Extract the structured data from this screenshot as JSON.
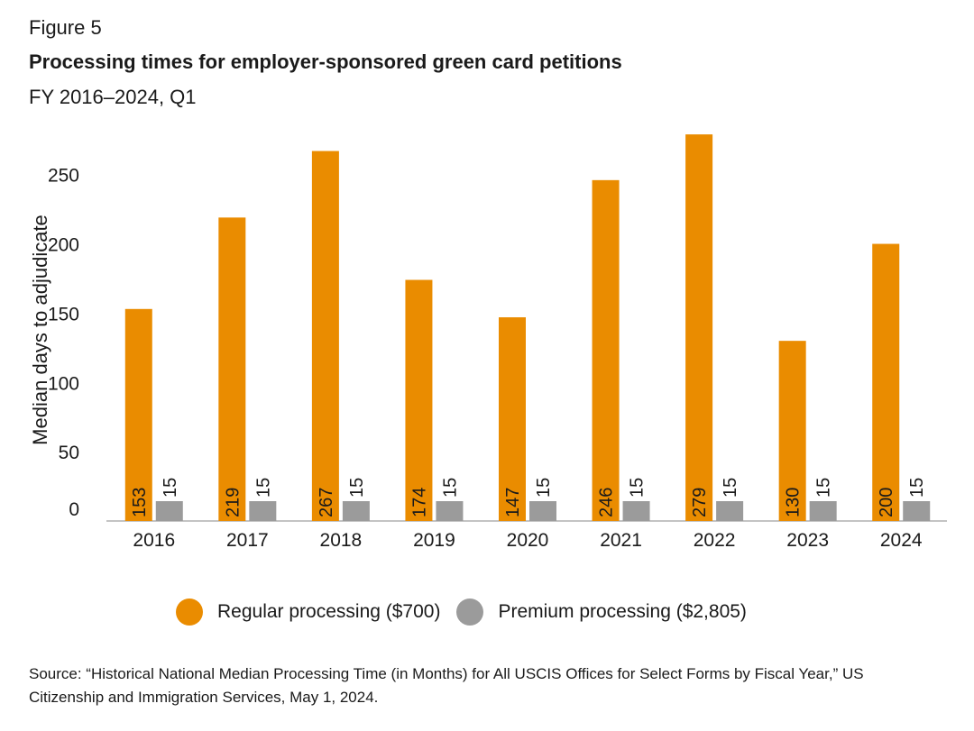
{
  "figure_label": "Figure 5",
  "chart_data": {
    "type": "bar",
    "title": "Processing times for employer-sponsored green card petitions",
    "subtitle": "FY 2016–2024, Q1",
    "xlabel": "",
    "ylabel": "Median days to adjudicate",
    "ylim": [
      0,
      280
    ],
    "yticks": [
      0,
      50,
      100,
      150,
      200,
      250
    ],
    "categories": [
      "2016",
      "2017",
      "2018",
      "2019",
      "2020",
      "2021",
      "2022",
      "2023",
      "2024"
    ],
    "series": [
      {
        "name": "Regular processing ($700)",
        "color": "#ea8c00",
        "values": [
          153,
          219,
          267,
          174,
          147,
          246,
          279,
          130,
          200
        ],
        "labels": [
          "153",
          "219",
          "267",
          "174",
          "147",
          "246",
          "279",
          "130",
          "200"
        ]
      },
      {
        "name": "Premium processing ($2,805)",
        "color": "#9b9b9b",
        "values": [
          15,
          15,
          15,
          15,
          15,
          15,
          15,
          15,
          15
        ],
        "labels": [
          "15",
          "15",
          "15",
          "15",
          "15",
          "15",
          "15",
          "15",
          "15"
        ]
      }
    ],
    "grid": false,
    "legend_position": "bottom"
  },
  "source": "Source: “Historical National Median Processing Time (in Months) for All USCIS Offices for Select Forms by Fiscal Year,” US Citizenship and Immigration Services, May 1, 2024."
}
